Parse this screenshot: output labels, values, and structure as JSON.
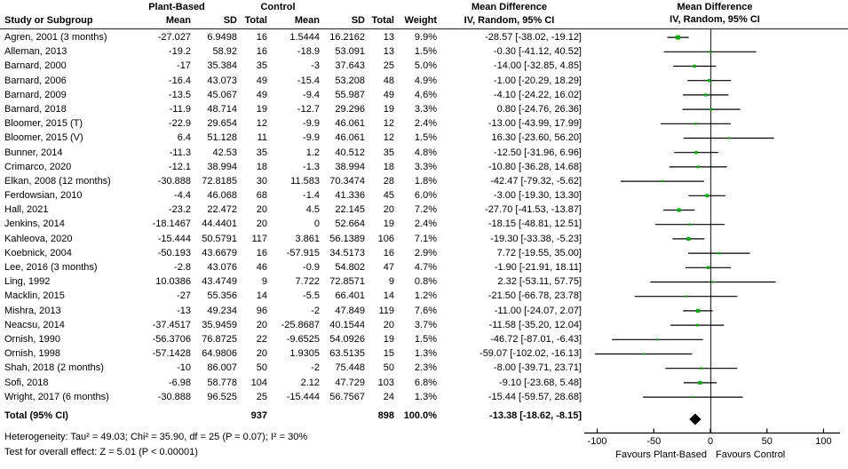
{
  "header": {
    "study_col": "Study or Subgroup",
    "group1": "Plant-Based",
    "group2": "Control",
    "mean": "Mean",
    "sd": "SD",
    "total": "Total",
    "weight": "Weight",
    "md_line1": "Mean Difference",
    "md_line2": "IV, Random, 95% CI"
  },
  "chart_data": {
    "type": "scatter",
    "subtype": "forest-plot",
    "effect_measure": "Mean Difference",
    "model": "IV, Random, 95% CI",
    "x_ticks": [
      -100,
      -50,
      0,
      50,
      100
    ],
    "xlim": [
      -113,
      115
    ],
    "favours_left": "Favours Plant-Based",
    "favours_right": "Favours Control",
    "marker_color": "#00b200",
    "line_color": "#000000",
    "studies": [
      {
        "name": "Agren, 2001 (3 months)",
        "mean1": "-27.027",
        "sd1": "6.9498",
        "n1": "16",
        "mean2": "1.5444",
        "sd2": "16.2162",
        "n2": "13",
        "weight": "9.9%",
        "ci": "-28.57 [-38.02, -19.12]",
        "md": -28.57,
        "lo": -38.02,
        "hi": -19.12,
        "w": 9.9
      },
      {
        "name": "Alleman, 2013",
        "mean1": "-19.2",
        "sd1": "58.92",
        "n1": "16",
        "mean2": "-18.9",
        "sd2": "53.091",
        "n2": "13",
        "weight": "1.5%",
        "ci": "-0.30 [-41.12, 40.52]",
        "md": -0.3,
        "lo": -41.12,
        "hi": 40.52,
        "w": 1.5
      },
      {
        "name": "Barnard, 2000",
        "mean1": "-17",
        "sd1": "35.384",
        "n1": "35",
        "mean2": "-3",
        "sd2": "37.643",
        "n2": "25",
        "weight": "5.0%",
        "ci": "-14.00 [-32.85, 4.85]",
        "md": -14.0,
        "lo": -32.85,
        "hi": 4.85,
        "w": 5.0
      },
      {
        "name": "Barnard, 2006",
        "mean1": "-16.4",
        "sd1": "43.073",
        "n1": "49",
        "mean2": "-15.4",
        "sd2": "53.208",
        "n2": "48",
        "weight": "4.9%",
        "ci": "-1.00 [-20.29, 18.29]",
        "md": -1.0,
        "lo": -20.29,
        "hi": 18.29,
        "w": 4.9
      },
      {
        "name": "Barnard, 2009",
        "mean1": "-13.5",
        "sd1": "45.067",
        "n1": "49",
        "mean2": "-9.4",
        "sd2": "55.987",
        "n2": "49",
        "weight": "4.6%",
        "ci": "-4.10 [-24.22, 16.02]",
        "md": -4.1,
        "lo": -24.22,
        "hi": 16.02,
        "w": 4.6
      },
      {
        "name": "Barnard, 2018",
        "mean1": "-11.9",
        "sd1": "48.714",
        "n1": "19",
        "mean2": "-12.7",
        "sd2": "29.296",
        "n2": "19",
        "weight": "3.3%",
        "ci": "0.80 [-24.76, 26.36]",
        "md": 0.8,
        "lo": -24.76,
        "hi": 26.36,
        "w": 3.3
      },
      {
        "name": "Bloomer, 2015 (T)",
        "mean1": "-22.9",
        "sd1": "29.654",
        "n1": "12",
        "mean2": "-9.9",
        "sd2": "46.061",
        "n2": "12",
        "weight": "2.4%",
        "ci": "-13.00 [-43.99, 17.99]",
        "md": -13.0,
        "lo": -43.99,
        "hi": 17.99,
        "w": 2.4
      },
      {
        "name": "Bloomer, 2015 (V)",
        "mean1": "6.4",
        "sd1": "51.128",
        "n1": "11",
        "mean2": "-9.9",
        "sd2": "46.061",
        "n2": "12",
        "weight": "1.5%",
        "ci": "16.30 [-23.60, 56.20]",
        "md": 16.3,
        "lo": -23.6,
        "hi": 56.2,
        "w": 1.5
      },
      {
        "name": "Bunner, 2014",
        "mean1": "-11.3",
        "sd1": "42.53",
        "n1": "35",
        "mean2": "1.2",
        "sd2": "40.512",
        "n2": "35",
        "weight": "4.8%",
        "ci": "-12.50 [-31.96, 6.96]",
        "md": -12.5,
        "lo": -31.96,
        "hi": 6.96,
        "w": 4.8
      },
      {
        "name": "Crimarco, 2020",
        "mean1": "-12.1",
        "sd1": "38.994",
        "n1": "18",
        "mean2": "-1.3",
        "sd2": "38.994",
        "n2": "18",
        "weight": "3.3%",
        "ci": "-10.80 [-36.28, 14.68]",
        "md": -10.8,
        "lo": -36.28,
        "hi": 14.68,
        "w": 3.3
      },
      {
        "name": "Elkan, 2008 (12 months)",
        "mean1": "-30.888",
        "sd1": "72.8185",
        "n1": "30",
        "mean2": "11.583",
        "sd2": "70.3474",
        "n2": "28",
        "weight": "1.8%",
        "ci": "-42.47 [-79.32, -5.62]",
        "md": -42.47,
        "lo": -79.32,
        "hi": -5.62,
        "w": 1.8
      },
      {
        "name": "Ferdowsian, 2010",
        "mean1": "-4.4",
        "sd1": "46.068",
        "n1": "68",
        "mean2": "-1.4",
        "sd2": "41.336",
        "n2": "45",
        "weight": "6.0%",
        "ci": "-3.00 [-19.30, 13.30]",
        "md": -3.0,
        "lo": -19.3,
        "hi": 13.3,
        "w": 6.0
      },
      {
        "name": "Hall, 2021",
        "mean1": "-23.2",
        "sd1": "22.472",
        "n1": "20",
        "mean2": "4.5",
        "sd2": "22.145",
        "n2": "20",
        "weight": "7.2%",
        "ci": "-27.70 [-41.53, -13.87]",
        "md": -27.7,
        "lo": -41.53,
        "hi": -13.87,
        "w": 7.2
      },
      {
        "name": "Jenkins, 2014",
        "mean1": "-18.1467",
        "sd1": "44.4401",
        "n1": "20",
        "mean2": "0",
        "sd2": "52.664",
        "n2": "19",
        "weight": "2.4%",
        "ci": "-18.15 [-48.81, 12.51]",
        "md": -18.15,
        "lo": -48.81,
        "hi": 12.51,
        "w": 2.4
      },
      {
        "name": "Kahleova, 2020",
        "mean1": "-15.444",
        "sd1": "50.5791",
        "n1": "117",
        "mean2": "3.861",
        "sd2": "56.1389",
        "n2": "106",
        "weight": "7.1%",
        "ci": "-19.30 [-33.38, -5.23]",
        "md": -19.3,
        "lo": -33.38,
        "hi": -5.23,
        "w": 7.1
      },
      {
        "name": "Koebnick, 2004",
        "mean1": "-50.193",
        "sd1": "43.6679",
        "n1": "16",
        "mean2": "-57.915",
        "sd2": "34.5173",
        "n2": "16",
        "weight": "2.9%",
        "ci": "7.72 [-19.55, 35.00]",
        "md": 7.72,
        "lo": -19.55,
        "hi": 35.0,
        "w": 2.9
      },
      {
        "name": "Lee, 2016 (3 months)",
        "mean1": "-2.8",
        "sd1": "43.076",
        "n1": "46",
        "mean2": "-0.9",
        "sd2": "54.802",
        "n2": "47",
        "weight": "4.7%",
        "ci": "-1.90 [-21.91, 18.11]",
        "md": -1.9,
        "lo": -21.91,
        "hi": 18.11,
        "w": 4.7
      },
      {
        "name": "Ling, 1992",
        "mean1": "10.0386",
        "sd1": "43.4749",
        "n1": "9",
        "mean2": "7.722",
        "sd2": "72.8571",
        "n2": "9",
        "weight": "0.8%",
        "ci": "2.32 [-53.11, 57.75]",
        "md": 2.32,
        "lo": -53.11,
        "hi": 57.75,
        "w": 0.8
      },
      {
        "name": "Macklin, 2015",
        "mean1": "-27",
        "sd1": "55.356",
        "n1": "14",
        "mean2": "-5.5",
        "sd2": "66.401",
        "n2": "14",
        "weight": "1.2%",
        "ci": "-21.50 [-66.78, 23.78]",
        "md": -21.5,
        "lo": -66.78,
        "hi": 23.78,
        "w": 1.2
      },
      {
        "name": "Mishra, 2013",
        "mean1": "-13",
        "sd1": "49.234",
        "n1": "96",
        "mean2": "-2",
        "sd2": "47.849",
        "n2": "119",
        "weight": "7.6%",
        "ci": "-11.00 [-24.07, 2.07]",
        "md": -11.0,
        "lo": -24.07,
        "hi": 2.07,
        "w": 7.6
      },
      {
        "name": "Neacsu, 2014",
        "mean1": "-37.4517",
        "sd1": "35.9459",
        "n1": "20",
        "mean2": "-25.8687",
        "sd2": "40.1544",
        "n2": "20",
        "weight": "3.7%",
        "ci": "-11.58 [-35.20, 12.04]",
        "md": -11.58,
        "lo": -35.2,
        "hi": 12.04,
        "w": 3.7
      },
      {
        "name": "Ornish, 1990",
        "mean1": "-56.3706",
        "sd1": "76.8725",
        "n1": "22",
        "mean2": "-9.6525",
        "sd2": "54.0926",
        "n2": "19",
        "weight": "1.5%",
        "ci": "-46.72 [-87.01, -6.43]",
        "md": -46.72,
        "lo": -87.01,
        "hi": -6.43,
        "w": 1.5
      },
      {
        "name": "Ornish, 1998",
        "mean1": "-57.1428",
        "sd1": "64.9806",
        "n1": "20",
        "mean2": "1.9305",
        "sd2": "63.5135",
        "n2": "15",
        "weight": "1.3%",
        "ci": "-59.07 [-102.02, -16.13]",
        "md": -59.07,
        "lo": -102.02,
        "hi": -16.13,
        "w": 1.3
      },
      {
        "name": "Shah, 2018 (2 months)",
        "mean1": "-10",
        "sd1": "86.007",
        "n1": "50",
        "mean2": "-2",
        "sd2": "75.448",
        "n2": "50",
        "weight": "2.3%",
        "ci": "-8.00 [-39.71, 23.71]",
        "md": -8.0,
        "lo": -39.71,
        "hi": 23.71,
        "w": 2.3
      },
      {
        "name": "Sofi, 2018",
        "mean1": "-6.98",
        "sd1": "58.778",
        "n1": "104",
        "mean2": "2.12",
        "sd2": "47.729",
        "n2": "103",
        "weight": "6.8%",
        "ci": "-9.10 [-23.68, 5.48]",
        "md": -9.1,
        "lo": -23.68,
        "hi": 5.48,
        "w": 6.8
      },
      {
        "name": "Wright, 2017 (6 months)",
        "mean1": "-30.888",
        "sd1": "96.525",
        "n1": "25",
        "mean2": "-15.444",
        "sd2": "56.7567",
        "n2": "24",
        "weight": "1.3%",
        "ci": "-15.44 [-59.57, 28.68]",
        "md": -15.44,
        "lo": -59.57,
        "hi": 28.68,
        "w": 1.3
      }
    ],
    "total": {
      "label": "Total (95% CI)",
      "n1": "937",
      "n2": "898",
      "weight": "100.0%",
      "ci": "-13.38 [-18.62, -8.15]",
      "md": -13.38,
      "lo": -18.62,
      "hi": -8.15
    }
  },
  "footer": {
    "heterogeneity": "Heterogeneity: Tau² = 49.03; Chi² = 35.90, df = 25 (P = 0.07); I² = 30%",
    "overall_effect": "Test for overall effect: Z = 5.01 (P < 0.00001)"
  }
}
